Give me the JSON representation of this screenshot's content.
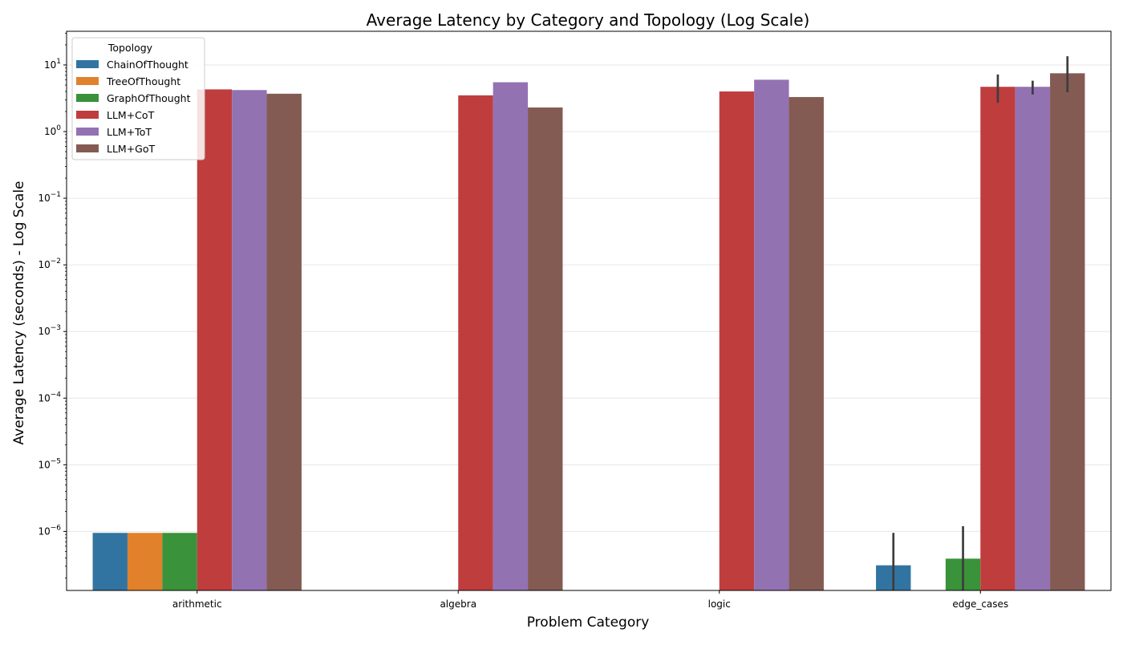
{
  "chart_data": {
    "type": "bar",
    "title": "Average Latency by Category and Topology (Log Scale)",
    "xlabel": "Problem Category",
    "ylabel": "Average Latency (seconds) - Log Scale",
    "yscale": "log",
    "ylim": [
      1.3e-07,
      32
    ],
    "yticks": [
      1e-06,
      1e-05,
      0.0001,
      0.001,
      0.01,
      0.1,
      1,
      10
    ],
    "ytick_labels": [
      {
        "base": "10",
        "exp": "−6"
      },
      {
        "base": "10",
        "exp": "−5"
      },
      {
        "base": "10",
        "exp": "−4"
      },
      {
        "base": "10",
        "exp": "−3"
      },
      {
        "base": "10",
        "exp": "−2"
      },
      {
        "base": "10",
        "exp": "−1"
      },
      {
        "base": "10",
        "exp": "0"
      },
      {
        "base": "10",
        "exp": "1"
      }
    ],
    "grid": "y",
    "legend": {
      "title": "Topology",
      "placement": "top-left"
    },
    "categories": [
      "arithmetic",
      "algebra",
      "logic",
      "edge_cases"
    ],
    "series": [
      {
        "name": "ChainOfThought",
        "color": "#3274a1",
        "values": [
          9.5e-07,
          null,
          null,
          3.1e-07
        ],
        "err": [
          null,
          null,
          null,
          [
            1.3e-07,
            9.5e-07
          ]
        ]
      },
      {
        "name": "TreeOfThought",
        "color": "#e1812c",
        "values": [
          9.5e-07,
          null,
          null,
          null
        ],
        "err": [
          null,
          null,
          null,
          null
        ]
      },
      {
        "name": "GraphOfThought",
        "color": "#3a923a",
        "values": [
          9.5e-07,
          null,
          null,
          3.9e-07
        ],
        "err": [
          null,
          null,
          null,
          [
            1.3e-07,
            1.2e-06
          ]
        ]
      },
      {
        "name": "LLM+CoT",
        "color": "#c03d3e",
        "values": [
          4.3,
          3.5,
          4.0,
          4.7
        ],
        "err": [
          null,
          null,
          null,
          [
            2.7,
            7.2
          ]
        ]
      },
      {
        "name": "LLM+ToT",
        "color": "#9372b2",
        "values": [
          4.2,
          5.5,
          6.0,
          4.7
        ],
        "err": [
          null,
          null,
          null,
          [
            3.6,
            5.8
          ]
        ]
      },
      {
        "name": "LLM+GoT",
        "color": "#845b53",
        "values": [
          3.7,
          2.3,
          3.3,
          7.5
        ],
        "err": [
          null,
          null,
          null,
          [
            3.9,
            13.5
          ]
        ]
      }
    ]
  }
}
